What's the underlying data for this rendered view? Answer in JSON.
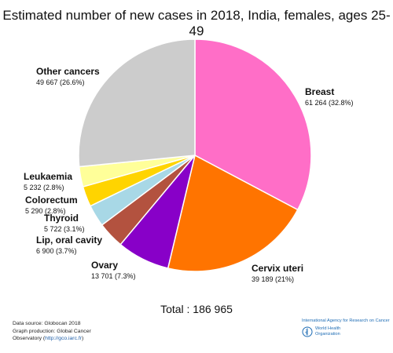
{
  "chart_data": {
    "type": "pie",
    "title": "Estimated number of new cases in 2018, India, females, ages 25-49",
    "slices": [
      {
        "name": "Breast",
        "value": 61264,
        "value_text": "61 264 (32.8%)",
        "color": "#ff6ec7"
      },
      {
        "name": "Cervix uteri",
        "value": 39189,
        "value_text": "39 189 (21%)",
        "color": "#ff7400"
      },
      {
        "name": "Ovary",
        "value": 13701,
        "value_text": "13 701 (7.3%)",
        "color": "#8800c8"
      },
      {
        "name": "Lip, oral cavity",
        "value": 6900,
        "value_text": "6 900 (3.7%)",
        "color": "#b3523f"
      },
      {
        "name": "Thyroid",
        "value": 5722,
        "value_text": "5 722 (3.1%)",
        "color": "#a8d8e6"
      },
      {
        "name": "Colorectum",
        "value": 5290,
        "value_text": "5 290 (2.8%)",
        "color": "#ffd400"
      },
      {
        "name": "Leukaemia",
        "value": 5232,
        "value_text": "5 232 (2.8%)",
        "color": "#ffff99"
      },
      {
        "name": "Other cancers",
        "value": 49667,
        "value_text": "49 667 (26.6%)",
        "color": "#cccccc"
      }
    ],
    "total_text": "Total : 186 965"
  },
  "footer": {
    "source_line1": "Data source: Globocan 2018",
    "source_line2": "Graph production: Global Cancer",
    "source_line3_prefix": "Observatory (",
    "source_link": "http://gco.iarc.fr",
    "source_line3_suffix": ")",
    "iarc_text": "International Agency for Research on Cancer",
    "who_line1": "World Health",
    "who_line2": "Organization",
    "who_logo": "who-emblem-icon"
  }
}
